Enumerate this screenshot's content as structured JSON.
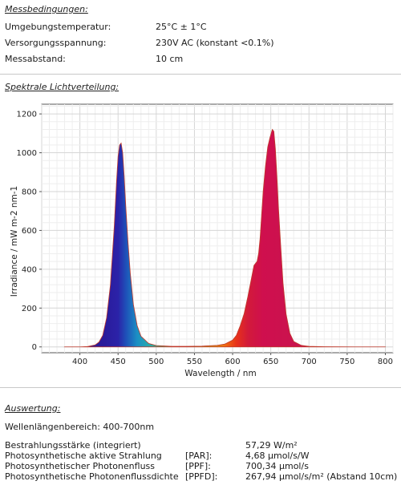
{
  "conditions": {
    "title": "Messbedingungen:",
    "rows": [
      {
        "label": "Umgebungstemperatur:",
        "value": "25°C ± 1°C"
      },
      {
        "label": "Versorgungsspannung:",
        "value": "230V AC (konstant <0.1%)"
      },
      {
        "label": "Messabstand:",
        "value": "10 cm"
      }
    ]
  },
  "spectrum": {
    "title": "Spektrale Lichtverteilung:"
  },
  "chart_data": {
    "type": "area",
    "xlabel": "Wavelength / nm",
    "ylabel": "Irradiance / mW m-2 nm-1",
    "xlim": [
      350,
      810
    ],
    "ylim": [
      -30,
      1250
    ],
    "xticks": [
      400,
      450,
      500,
      550,
      600,
      650,
      700,
      750,
      800
    ],
    "yticks": [
      0,
      200,
      400,
      600,
      800,
      1000,
      1200
    ],
    "grid": true,
    "x": [
      380,
      400,
      410,
      420,
      425,
      430,
      435,
      440,
      445,
      448,
      450,
      452,
      454,
      456,
      458,
      460,
      463,
      466,
      470,
      475,
      480,
      490,
      500,
      520,
      540,
      560,
      580,
      590,
      600,
      605,
      610,
      615,
      620,
      625,
      628,
      630,
      632,
      634,
      636,
      638,
      640,
      643,
      646,
      649,
      652,
      654,
      656,
      658,
      660,
      663,
      666,
      670,
      675,
      680,
      690,
      700,
      720,
      760,
      800
    ],
    "values": [
      0,
      0,
      2,
      10,
      25,
      60,
      150,
      320,
      620,
      850,
      980,
      1040,
      1050,
      1000,
      880,
      730,
      540,
      380,
      220,
      110,
      55,
      18,
      7,
      3,
      3,
      4,
      8,
      15,
      35,
      60,
      110,
      170,
      260,
      360,
      420,
      430,
      440,
      480,
      560,
      680,
      800,
      930,
      1030,
      1080,
      1120,
      1110,
      1020,
      880,
      720,
      520,
      330,
      170,
      70,
      28,
      8,
      3,
      1,
      0,
      0
    ]
  },
  "evaluation": {
    "title": "Auswertung:",
    "range": "Wellenlängenbereich: 400-700nm",
    "rows": [
      {
        "name": "Bestrahlungsstärke (integriert)",
        "abbr": "",
        "value": "57,29 W/m²"
      },
      {
        "name": "Photosynthetische aktive Strahlung",
        "abbr": "[PAR]:",
        "value": "4,68 µmol/s/W"
      },
      {
        "name": "Photosynthetischer Photonenfluss",
        "abbr": "[PPF]:",
        "value": "700,34 µmol/s"
      },
      {
        "name": "Photosynthetische Photonenflussdichte",
        "abbr": "[PPFD]:",
        "value": "267,94 µmol/s/m² (Abstand 10cm)"
      }
    ]
  }
}
